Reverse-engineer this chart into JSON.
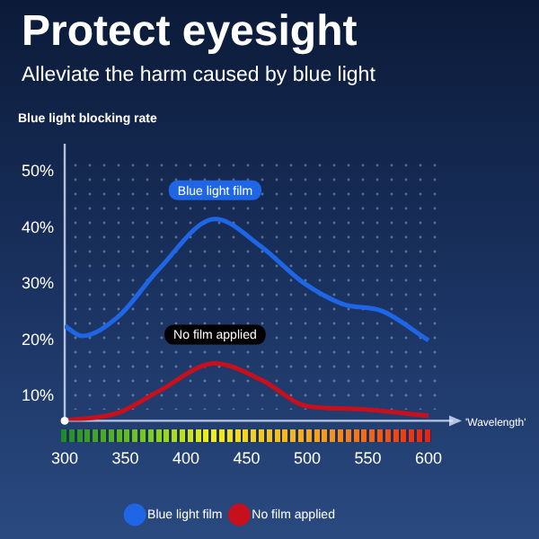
{
  "chart_data": {
    "type": "line",
    "title": "Protect eyesight",
    "subtitle": "Alleviate the harm caused by blue light",
    "ylabel": "Blue light blocking rate",
    "xlabel": "'Wavelength'",
    "xlim": [
      300,
      620
    ],
    "xticks": [
      300,
      350,
      400,
      450,
      500,
      550,
      600
    ],
    "ylim": [
      5.7,
      55
    ],
    "yticks": [
      {
        "value": 10,
        "label": "10%"
      },
      {
        "value": 20,
        "label": "20%"
      },
      {
        "value": 30,
        "label": "30%"
      },
      {
        "value": 40,
        "label": "40%"
      },
      {
        "value": 50,
        "label": "50%"
      }
    ],
    "legend": "bottom",
    "marker": "none",
    "line_style": "solid",
    "series": [
      {
        "name": "Blue light film",
        "color": "#1f66e6",
        "x": [
          300,
          314,
          344,
          377,
          424,
          462,
          496,
          529,
          562,
          600
        ],
        "values": [
          22.6,
          20.8,
          24.2,
          32.5,
          41.6,
          36.7,
          30.4,
          26.5,
          25.2,
          20
        ]
      },
      {
        "name": "No film applied",
        "color": "#c8101c",
        "x": [
          300,
          344,
          377,
          424,
          462,
          500,
          540,
          600
        ],
        "values": [
          5.7,
          7.1,
          10.9,
          15.9,
          13,
          8.3,
          7.8,
          6.6
        ]
      }
    ],
    "annotations": [
      {
        "text": "Blue light film",
        "x": 424,
        "y": 41.6
      },
      {
        "text": "No film applied",
        "x": 424,
        "y": 15.9
      }
    ]
  }
}
